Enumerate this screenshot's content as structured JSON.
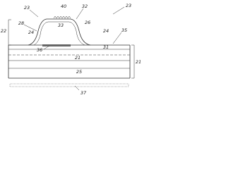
{
  "labels": [
    "23",
    "40",
    "32",
    "23",
    "22",
    "28",
    "33",
    "26",
    "24",
    "24",
    "35",
    "36",
    "31",
    "21",
    "21",
    "25",
    "37"
  ]
}
